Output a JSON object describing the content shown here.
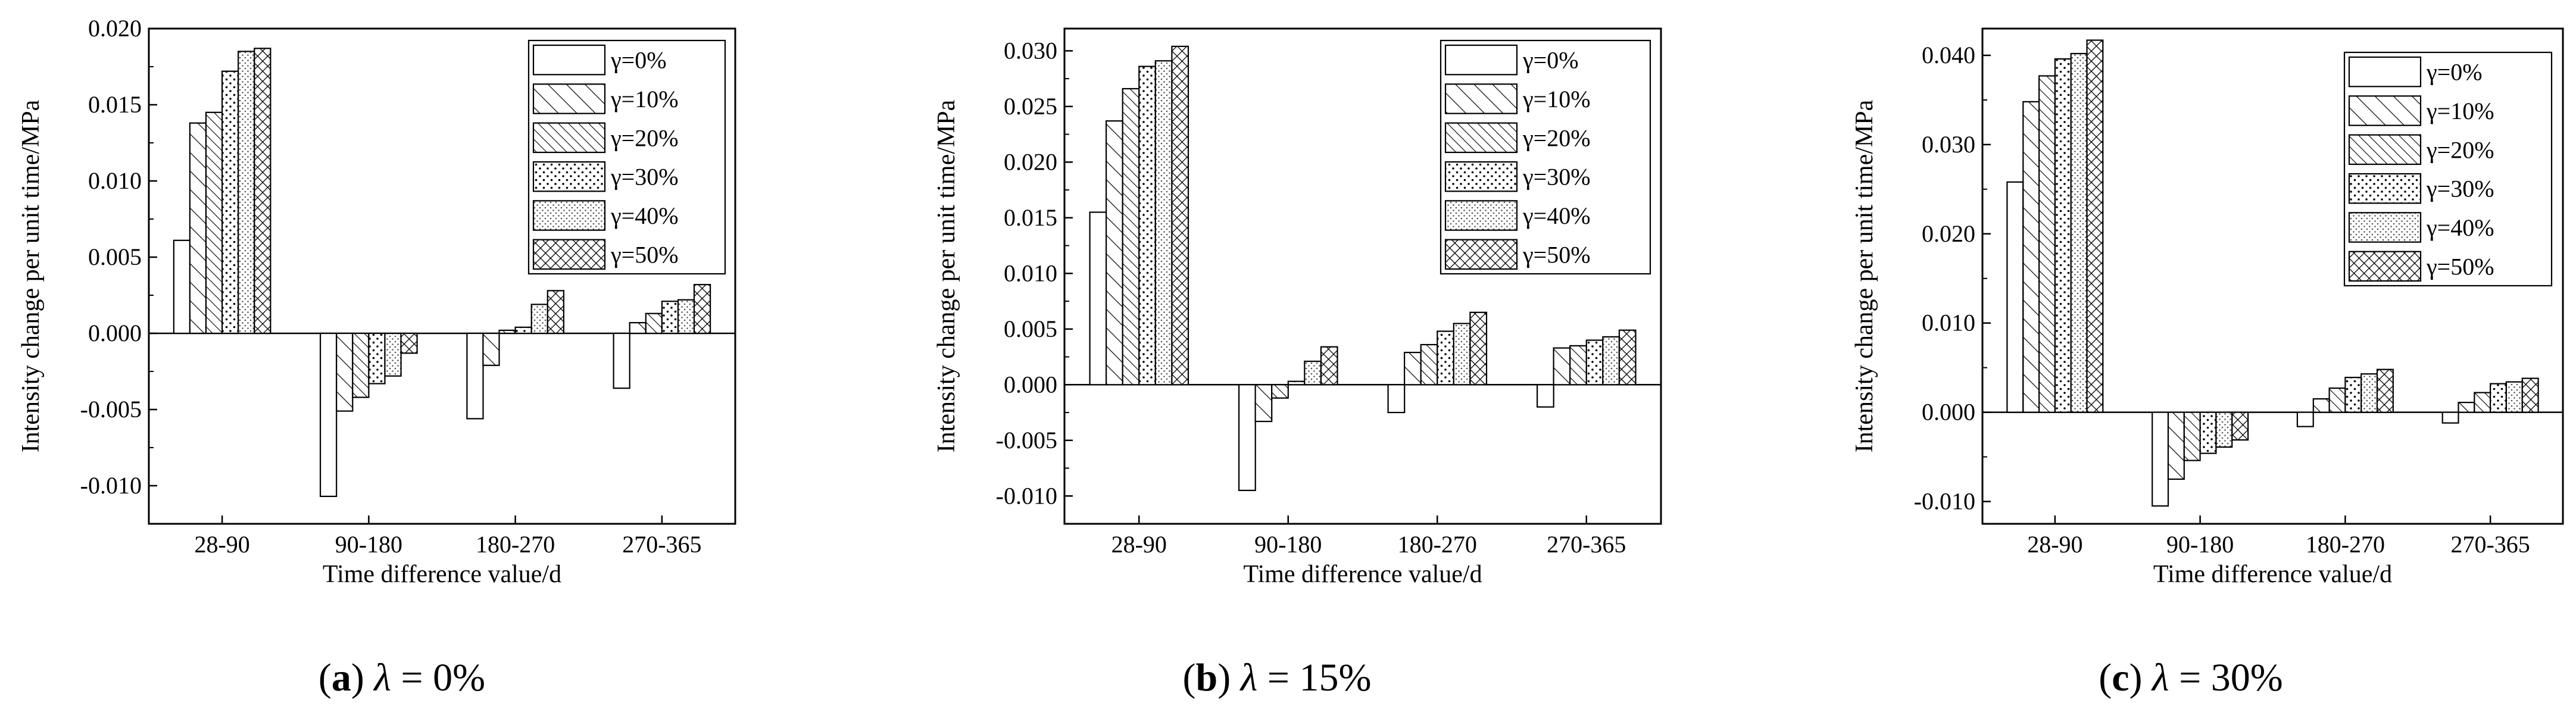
{
  "legend": [
    "γ=0%",
    "γ=10%",
    "γ=20%",
    "γ=30%",
    "γ=40%",
    "γ=50%"
  ],
  "chart_data": [
    {
      "type": "bar",
      "caption": {
        "letter": "a",
        "lambda": "λ",
        "rest": " = 0%"
      },
      "categories": [
        "28-90",
        "90-180",
        "180-270",
        "270-365"
      ],
      "xlabel": "Time difference value/d",
      "ylabel": "Intensity change per unit time/MPa",
      "ylim": [
        -0.0125,
        0.02
      ],
      "yticks": [
        -0.01,
        -0.005,
        0.0,
        0.005,
        0.01,
        0.015,
        0.02
      ],
      "ytick_labels": [
        "-0.010",
        "-0.005",
        "0.000",
        "0.005",
        "0.010",
        "0.015",
        "0.020"
      ],
      "legend_position": "top-right",
      "series": [
        {
          "name": "γ=0%",
          "values": [
            0.0061,
            -0.0107,
            -0.0056,
            -0.0036
          ]
        },
        {
          "name": "γ=10%",
          "values": [
            0.0138,
            -0.0051,
            -0.0021,
            0.0007
          ]
        },
        {
          "name": "γ=20%",
          "values": [
            0.0145,
            -0.0042,
            0.0002,
            0.0013
          ]
        },
        {
          "name": "γ=30%",
          "values": [
            0.0172,
            -0.0033,
            0.0004,
            0.0021
          ]
        },
        {
          "name": "γ=40%",
          "values": [
            0.0185,
            -0.0028,
            0.0019,
            0.0022
          ]
        },
        {
          "name": "γ=50%",
          "values": [
            0.0187,
            -0.0013,
            0.0028,
            0.0032
          ]
        }
      ]
    },
    {
      "type": "bar",
      "caption": {
        "letter": "b",
        "lambda": "λ",
        "rest": " = 15%"
      },
      "categories": [
        "28-90",
        "90-180",
        "180-270",
        "270-365"
      ],
      "xlabel": "Time difference value/d",
      "ylabel": "Intensity change per unit time/MPa",
      "ylim": [
        -0.0125,
        0.032
      ],
      "yticks": [
        -0.01,
        -0.005,
        0.0,
        0.005,
        0.01,
        0.015,
        0.02,
        0.025,
        0.03
      ],
      "ytick_labels": [
        "-0.010",
        "-0.005",
        "0.000",
        "0.005",
        "0.010",
        "0.015",
        "0.020",
        "0.025",
        "0.030"
      ],
      "legend_position": "top-right",
      "series": [
        {
          "name": "γ=0%",
          "values": [
            0.0155,
            -0.0095,
            -0.0025,
            -0.002
          ]
        },
        {
          "name": "γ=10%",
          "values": [
            0.0237,
            -0.0033,
            0.0029,
            0.0033
          ]
        },
        {
          "name": "γ=20%",
          "values": [
            0.0266,
            -0.0012,
            0.0036,
            0.0035
          ]
        },
        {
          "name": "γ=30%",
          "values": [
            0.0286,
            0.0003,
            0.0048,
            0.004
          ]
        },
        {
          "name": "γ=40%",
          "values": [
            0.0291,
            0.0021,
            0.0055,
            0.0043
          ]
        },
        {
          "name": "γ=50%",
          "values": [
            0.0304,
            0.0034,
            0.0065,
            0.0049
          ]
        }
      ]
    },
    {
      "type": "bar",
      "caption": {
        "letter": "c",
        "lambda": "λ",
        "rest": " = 30%"
      },
      "categories": [
        "28-90",
        "90-180",
        "180-270",
        "270-365"
      ],
      "xlabel": "Time difference value/d",
      "ylabel": "Intensity change per unit time/MPa",
      "ylim": [
        -0.0125,
        0.043
      ],
      "yticks": [
        -0.01,
        0.0,
        0.01,
        0.02,
        0.03,
        0.04
      ],
      "ytick_labels": [
        "-0.010",
        "0.000",
        "0.010",
        "0.020",
        "0.030",
        "0.040"
      ],
      "legend_position": "top-right",
      "series": [
        {
          "name": "γ=0%",
          "values": [
            0.0258,
            -0.0105,
            -0.0016,
            -0.0012
          ]
        },
        {
          "name": "γ=10%",
          "values": [
            0.0348,
            -0.0075,
            0.0015,
            0.0011
          ]
        },
        {
          "name": "γ=20%",
          "values": [
            0.0377,
            -0.0054,
            0.0027,
            0.0022
          ]
        },
        {
          "name": "γ=30%",
          "values": [
            0.0396,
            -0.0046,
            0.0039,
            0.0032
          ]
        },
        {
          "name": "γ=40%",
          "values": [
            0.0402,
            -0.0039,
            0.0043,
            0.0034
          ]
        },
        {
          "name": "γ=50%",
          "values": [
            0.0417,
            -0.0031,
            0.0048,
            0.0038
          ]
        }
      ]
    }
  ]
}
